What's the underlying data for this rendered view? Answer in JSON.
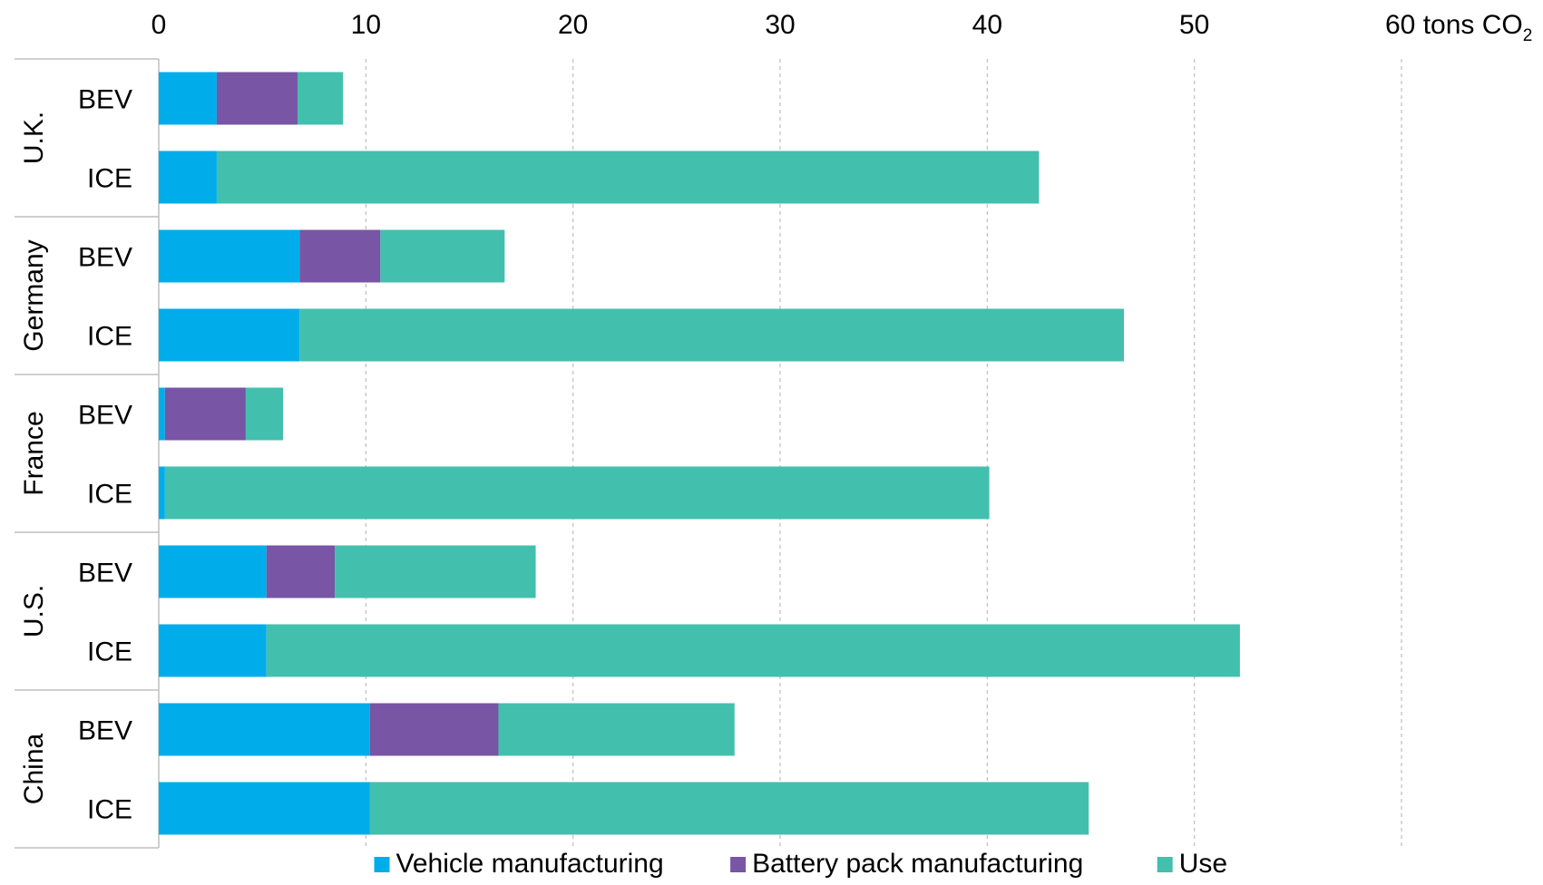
{
  "chart_data": {
    "type": "bar",
    "orientation": "horizontal",
    "stacked": true,
    "title": "",
    "xlabel": "",
    "ylabel": "",
    "x_unit": {
      "text": "tons CO",
      "subscript": "2"
    },
    "xlim": [
      0,
      60
    ],
    "xticks": [
      0,
      10,
      20,
      30,
      40,
      50,
      60
    ],
    "x_axis_position": "top",
    "grid": "vertical dashed",
    "legend_position": "bottom",
    "groups": [
      "U.K.",
      "Germany",
      "France",
      "U.S.",
      "China"
    ],
    "categories": [
      {
        "group": "U.K.",
        "label": "BEV"
      },
      {
        "group": "U.K.",
        "label": "ICE"
      },
      {
        "group": "Germany",
        "label": "BEV"
      },
      {
        "group": "Germany",
        "label": "ICE"
      },
      {
        "group": "France",
        "label": "BEV"
      },
      {
        "group": "France",
        "label": "ICE"
      },
      {
        "group": "U.S.",
        "label": "BEV"
      },
      {
        "group": "U.S.",
        "label": "ICE"
      },
      {
        "group": "China",
        "label": "BEV"
      },
      {
        "group": "China",
        "label": "ICE"
      }
    ],
    "series": [
      {
        "name": "Vehicle manufacturing",
        "color": "#00adea",
        "values": [
          2.8,
          2.8,
          6.8,
          6.8,
          0.3,
          0.3,
          5.2,
          5.2,
          10.2,
          10.2
        ]
      },
      {
        "name": "Battery pack manufacturing",
        "color": "#7855a5",
        "values": [
          3.9,
          0,
          3.9,
          0,
          3.9,
          0,
          3.3,
          0,
          6.2,
          0
        ]
      },
      {
        "name": "Use",
        "color": "#43bfad",
        "values": [
          2.2,
          39.7,
          6.0,
          39.8,
          1.8,
          39.8,
          9.7,
          47.0,
          11.4,
          34.7
        ]
      }
    ]
  }
}
